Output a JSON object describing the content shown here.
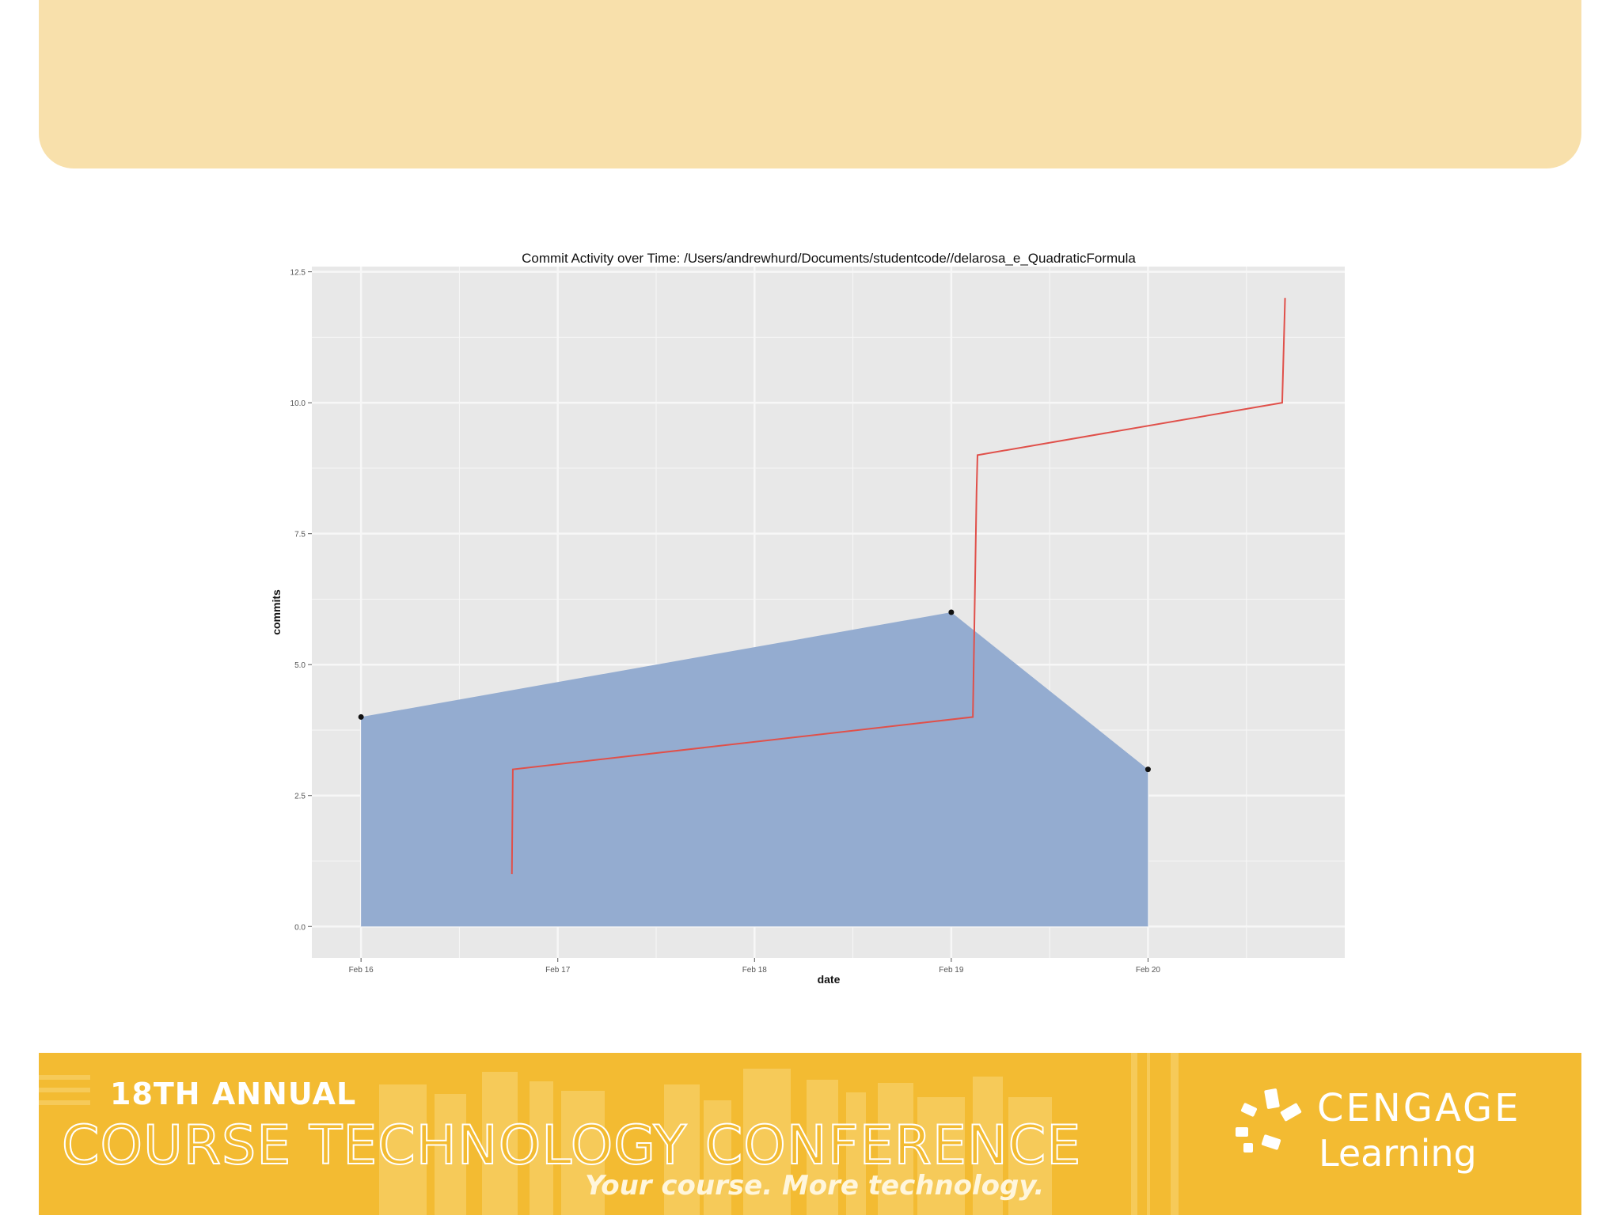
{
  "chart_data": {
    "type": "area",
    "title": "Commit Activity over Time:  /Users/andrewhurd/Documents/studentcode//delarosa_e_QuadraticFormula",
    "xlabel": "date",
    "ylabel": "commits",
    "x_ticks": [
      "Feb 16",
      "Feb 17",
      "Feb 18",
      "Feb 19",
      "Feb 20"
    ],
    "y_ticks": [
      "0.0",
      "2.5",
      "5.0",
      "7.5",
      "10.0",
      "12.5"
    ],
    "ylim": [
      -0.6,
      12.6
    ],
    "xlim": [
      "2015-02-15 18:00",
      "2015-02-21 00:00"
    ],
    "grid": true,
    "colors": {
      "area": "#94acd0",
      "line": "#e0504a",
      "points": "#111111",
      "panel": "#e8e8e8",
      "grid": "#f7f7f7"
    },
    "series": [
      {
        "type": "area",
        "x": [
          "2015-02-16 00:00",
          "2015-02-19 00:00",
          "2015-02-20 00:00"
        ],
        "values": [
          4,
          6,
          3
        ]
      },
      {
        "type": "line",
        "x": [
          "2015-02-16 18:24",
          "2015-02-16 18:31",
          "2015-02-19 02:38",
          "2015-02-19 03:05",
          "2015-02-19 03:12",
          "2015-02-20 16:22",
          "2015-02-20 16:43"
        ],
        "values": [
          1,
          3,
          4,
          8.3,
          9,
          10,
          12
        ]
      }
    ]
  },
  "footer": {
    "annual": "18TH ANNUAL",
    "conference": "COURSE TECHNOLOGY CONFERENCE",
    "tagline": "Your course. More technology.",
    "brand_line1": "CENGAGE",
    "brand_line2": "Learning"
  }
}
